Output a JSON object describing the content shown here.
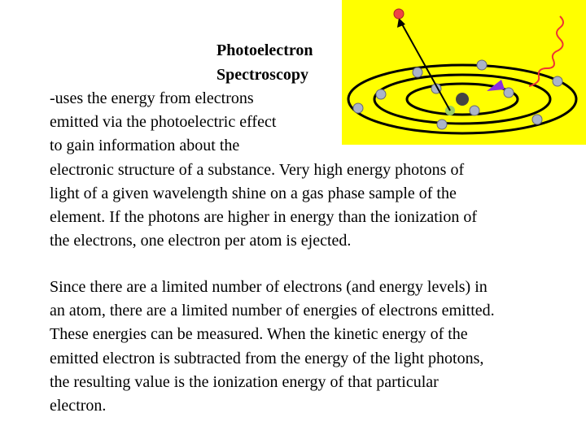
{
  "title": {
    "lines": [
      "Photoelectron",
      "Spectroscopy"
    ]
  },
  "paragraphs": [
    {
      "lines": [
        "-uses the energy from electrons",
        "emitted via the photoelectric effect",
        "to gain information about the",
        "electronic structure of a substance. Very high energy photons of",
        "light of a given wavelength shine on a gas phase sample of the",
        "element.  If the photons are higher in energy than the ionization of",
        "the electrons, one electron per atom is ejected."
      ]
    },
    {
      "lines": [
        "Since there are a limited number of electrons (and energy levels) in",
        "an atom, there are a limited number of energies of electrons emitted.",
        "These energies can be measured.  When the kinetic energy of the",
        "emitted electron is subtracted from the energy of the light photons,",
        "the resulting value is the ionization energy of that particular",
        "electron."
      ]
    }
  ]
}
